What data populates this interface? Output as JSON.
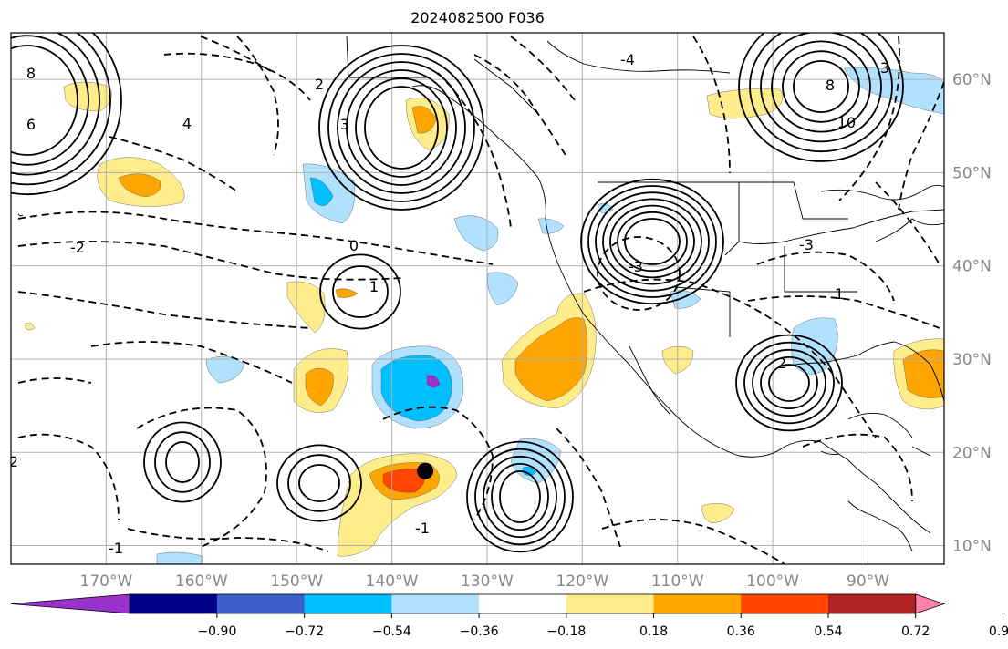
{
  "title": "2024082500 F036",
  "map": {
    "projection": "lat-lon",
    "extent": {
      "lon_min": -180,
      "lon_max": -82,
      "lat_min": 8,
      "lat_max": 65
    },
    "lat_labels": [
      "60°N",
      "50°N",
      "40°N",
      "30°N",
      "20°N",
      "10°N"
    ],
    "lon_labels": [
      "170°W",
      "160°W",
      "150°W",
      "140°W",
      "130°W",
      "120°W",
      "110°W",
      "100°W",
      "90°W"
    ],
    "grid": true,
    "storm_marker": {
      "lon": -136.5,
      "lat": 18.0,
      "color": "#000000"
    }
  },
  "contour_labels": [
    "8",
    "6",
    "4",
    "3",
    "2",
    "1",
    "0",
    "-1",
    "-2",
    "-3",
    "10",
    "8",
    "-4",
    "3",
    "-3",
    "2",
    "1",
    "-1",
    "2"
  ],
  "colorbar": {
    "colors": [
      "#9932cc",
      "#00008b",
      "#3a5fcd",
      "#00bfff",
      "#b0e2ff",
      "#ffffff",
      "#ffec8b",
      "#ffa500",
      "#ff4500",
      "#b22222",
      "#ff82ab"
    ],
    "ticks": [
      "−0.90",
      "−0.72",
      "−0.54",
      "−0.36",
      "−0.18",
      "0.18",
      "0.36",
      "0.54",
      "0.72",
      "0.90"
    ],
    "extend": "both"
  }
}
